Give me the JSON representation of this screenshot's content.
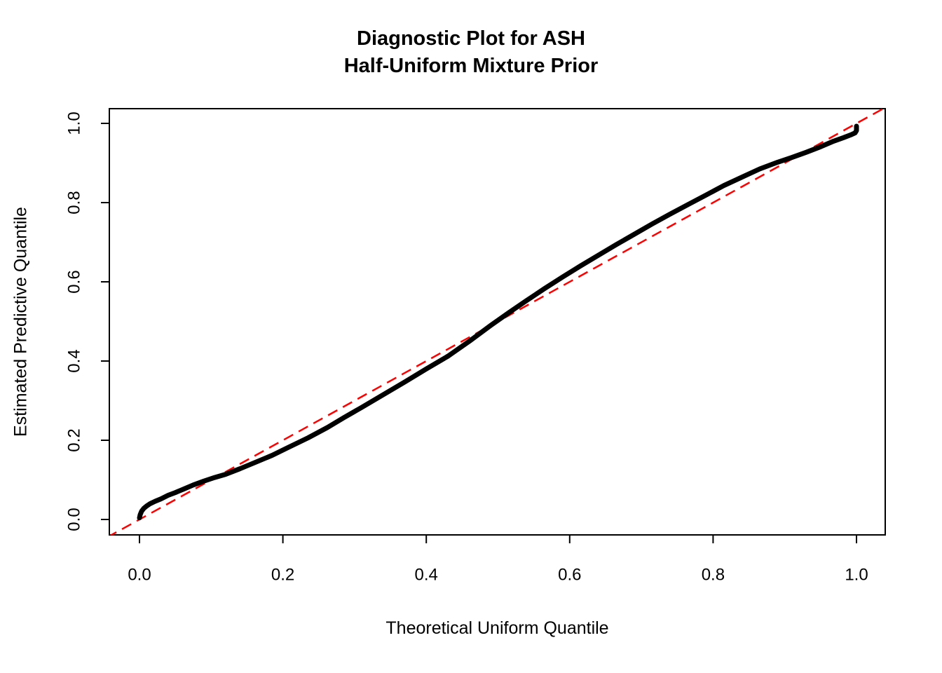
{
  "chart_data": {
    "type": "line",
    "title": "Diagnostic Plot for ASH Half-Uniform Mixture Prior",
    "title_lines": [
      "Diagnostic Plot for ASH",
      "Half-Uniform Mixture Prior"
    ],
    "xlabel": "Theoretical Uniform Quantile",
    "ylabel": "Estimated Predictive Quantile",
    "xlim": [
      -0.045,
      1.045
    ],
    "ylim": [
      -0.045,
      1.045
    ],
    "grid": false,
    "legend": "none",
    "x_ticks": {
      "values": [
        0.0,
        0.2,
        0.4,
        0.6,
        0.8,
        1.0
      ],
      "labels": [
        "0.0",
        "0.2",
        "0.4",
        "0.6",
        "0.8",
        "1.0"
      ]
    },
    "y_ticks": {
      "values": [
        0.0,
        0.2,
        0.4,
        0.6,
        0.8,
        1.0
      ],
      "labels": [
        "0.0",
        "0.2",
        "0.4",
        "0.6",
        "0.8",
        "1.0"
      ]
    },
    "series": [
      {
        "name": "estimated-predictive-quantile-curve",
        "color": "#000000",
        "style": "solid",
        "line_width": 7,
        "points": [
          [
            0.0,
            0.004
          ],
          [
            0.001,
            0.012
          ],
          [
            0.003,
            0.021
          ],
          [
            0.006,
            0.028
          ],
          [
            0.01,
            0.034
          ],
          [
            0.015,
            0.04
          ],
          [
            0.022,
            0.046
          ],
          [
            0.03,
            0.052
          ],
          [
            0.04,
            0.061
          ],
          [
            0.05,
            0.068
          ],
          [
            0.062,
            0.077
          ],
          [
            0.075,
            0.087
          ],
          [
            0.09,
            0.097
          ],
          [
            0.105,
            0.106
          ],
          [
            0.12,
            0.114
          ],
          [
            0.14,
            0.128
          ],
          [
            0.16,
            0.143
          ],
          [
            0.185,
            0.162
          ],
          [
            0.21,
            0.184
          ],
          [
            0.235,
            0.206
          ],
          [
            0.262,
            0.232
          ],
          [
            0.285,
            0.257
          ],
          [
            0.31,
            0.283
          ],
          [
            0.34,
            0.315
          ],
          [
            0.37,
            0.347
          ],
          [
            0.4,
            0.38
          ],
          [
            0.43,
            0.412
          ],
          [
            0.46,
            0.45
          ],
          [
            0.49,
            0.49
          ],
          [
            0.515,
            0.522
          ],
          [
            0.54,
            0.553
          ],
          [
            0.565,
            0.583
          ],
          [
            0.59,
            0.612
          ],
          [
            0.615,
            0.64
          ],
          [
            0.64,
            0.667
          ],
          [
            0.665,
            0.694
          ],
          [
            0.69,
            0.72
          ],
          [
            0.715,
            0.746
          ],
          [
            0.74,
            0.771
          ],
          [
            0.765,
            0.795
          ],
          [
            0.79,
            0.819
          ],
          [
            0.815,
            0.843
          ],
          [
            0.84,
            0.864
          ],
          [
            0.865,
            0.885
          ],
          [
            0.89,
            0.902
          ],
          [
            0.91,
            0.914
          ],
          [
            0.93,
            0.927
          ],
          [
            0.95,
            0.941
          ],
          [
            0.968,
            0.955
          ],
          [
            0.982,
            0.964
          ],
          [
            0.992,
            0.971
          ],
          [
            0.998,
            0.976
          ],
          [
            1.0,
            0.982
          ],
          [
            1.0,
            0.993
          ]
        ]
      },
      {
        "name": "y-equals-x-reference-line",
        "color": "#FF0000",
        "style": "dashed",
        "line_width": 2.5,
        "points": [
          [
            -0.045,
            -0.045
          ],
          [
            1.045,
            1.045
          ]
        ]
      }
    ],
    "colors": {
      "curve": "#000000",
      "reference_line": "#FF0000",
      "background": "#FFFFFF",
      "text": "#000000"
    }
  }
}
